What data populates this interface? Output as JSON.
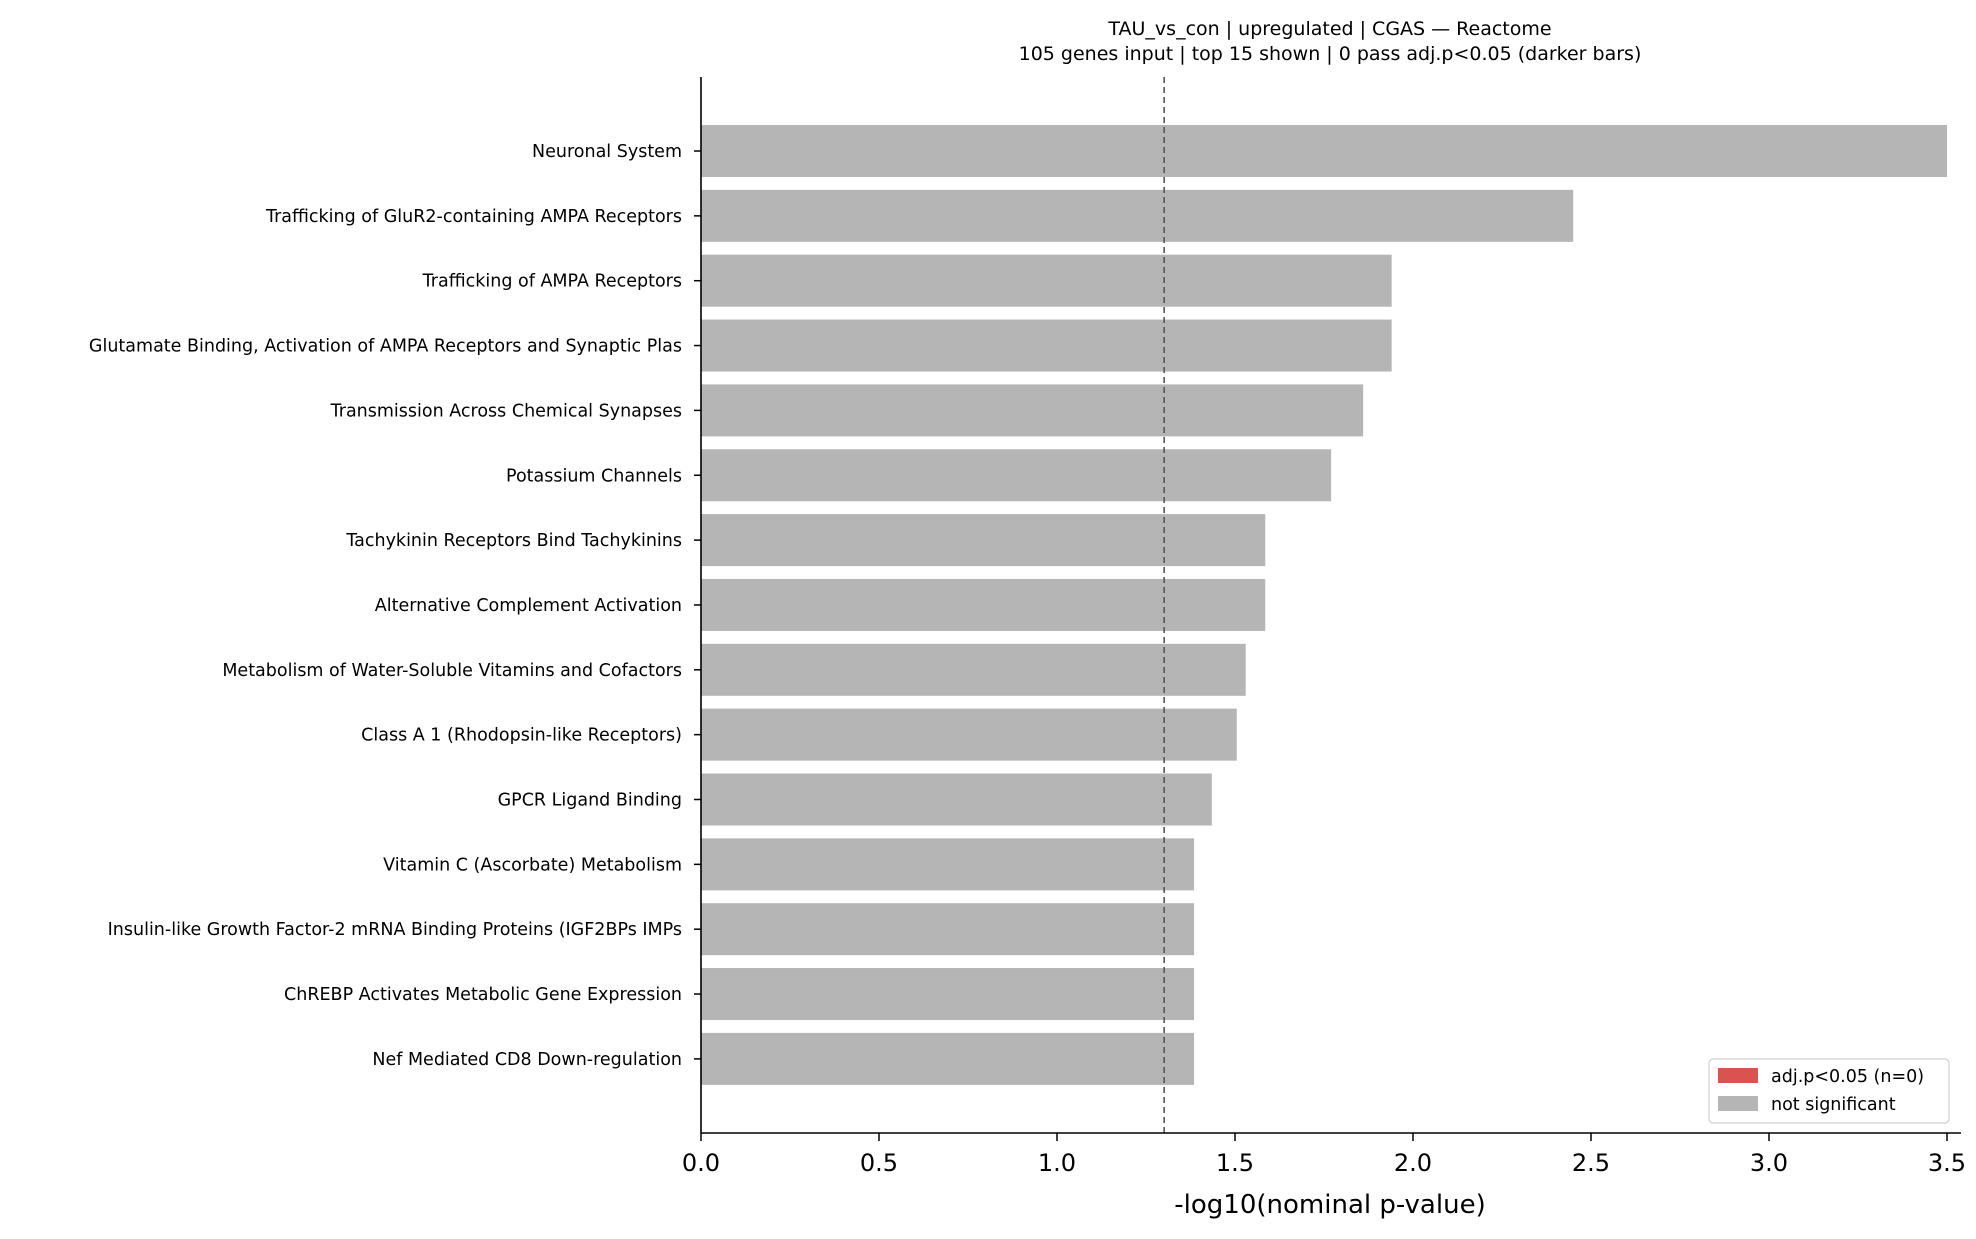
{
  "chart_data": {
    "type": "bar",
    "orientation": "horizontal",
    "title": "TAU_vs_con | upregulated | CGAS — Reactome",
    "subtitle": "105 genes input  |  top 15 shown  |  0 pass adj.p<0.05 (darker bars)",
    "xlabel": "-log10(nominal p-value)",
    "ylabel": "",
    "xlim": [
      0,
      3.67
    ],
    "xticks": [
      "0.0",
      "0.5",
      "1.0",
      "1.5",
      "2.0",
      "2.5",
      "3.0",
      "3.5"
    ],
    "threshold_line": 1.301,
    "grid": false,
    "legend_position": "lower-right",
    "categories": [
      "Neuronal System",
      "Trafficking of GluR2-containing AMPA Receptors",
      "Trafficking of AMPA Receptors",
      "Glutamate Binding, Activation of AMPA Receptors and Synaptic Plas",
      "Transmission Across Chemical Synapses",
      "Potassium Channels",
      "Tachykinin Receptors Bind Tachykinins",
      "Alternative Complement Activation",
      "Metabolism of Water-Soluble Vitamins and Cofactors",
      "Class A 1 (Rhodopsin-like Receptors)",
      "GPCR Ligand Binding",
      "Vitamin C (Ascorbate) Metabolism",
      "Insulin-like Growth Factor-2 mRNA Binding Proteins (IGF2BPs IMPs ",
      "ChREBP Activates Metabolic Gene Expression",
      "Nef Mediated CD8 Down-regulation"
    ],
    "values": [
      3.5,
      2.45,
      1.94,
      1.94,
      1.86,
      1.77,
      1.585,
      1.585,
      1.53,
      1.505,
      1.435,
      1.385,
      1.385,
      1.385,
      1.385
    ],
    "significant": [
      false,
      false,
      false,
      false,
      false,
      false,
      false,
      false,
      false,
      false,
      false,
      false,
      false,
      false,
      false
    ],
    "colors": {
      "significant": "#d9534f",
      "not_significant": "#b5b5b5",
      "threshold": "#555555"
    },
    "legend": [
      {
        "label": "adj.p<0.05 (n=0)",
        "color": "#d9534f"
      },
      {
        "label": "not significant",
        "color": "#b5b5b5"
      }
    ]
  }
}
